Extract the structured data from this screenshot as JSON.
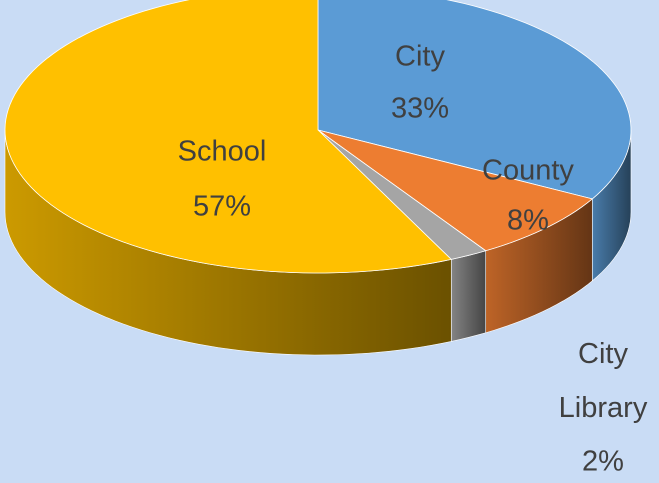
{
  "chart_data": {
    "type": "pie",
    "three_d": true,
    "categories": [
      "City",
      "County",
      "City Library",
      "School"
    ],
    "values": [
      33,
      8,
      2,
      57
    ],
    "value_labels": [
      "33%",
      "8%",
      "2%",
      "57%"
    ],
    "colors": [
      "#5b9bd5",
      "#ed7d31",
      "#a5a5a5",
      "#ffc000"
    ]
  }
}
